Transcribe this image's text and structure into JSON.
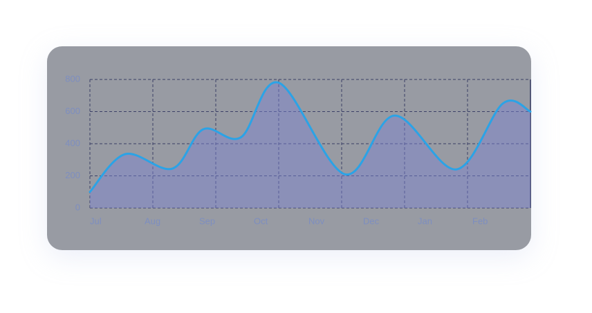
{
  "chart_data": {
    "type": "area",
    "categories": [
      "Jul",
      "Aug",
      "Sep",
      "Oct",
      "Nov",
      "Dec",
      "Jan",
      "Feb"
    ],
    "x": [
      0,
      0.56,
      1.31,
      1.8,
      2.4,
      3.0,
      4.05,
      4.84,
      5.82,
      6.56,
      7
    ],
    "series": [
      {
        "color": "#2ba3e6",
        "values": [
          100,
          335,
          245,
          490,
          440,
          780,
          210,
          575,
          240,
          650,
          600
        ]
      }
    ],
    "xlim": [
      0,
      7
    ],
    "ylim": [
      0,
      800
    ],
    "yticks": [
      0,
      200,
      400,
      600,
      800
    ],
    "grid": true
  }
}
